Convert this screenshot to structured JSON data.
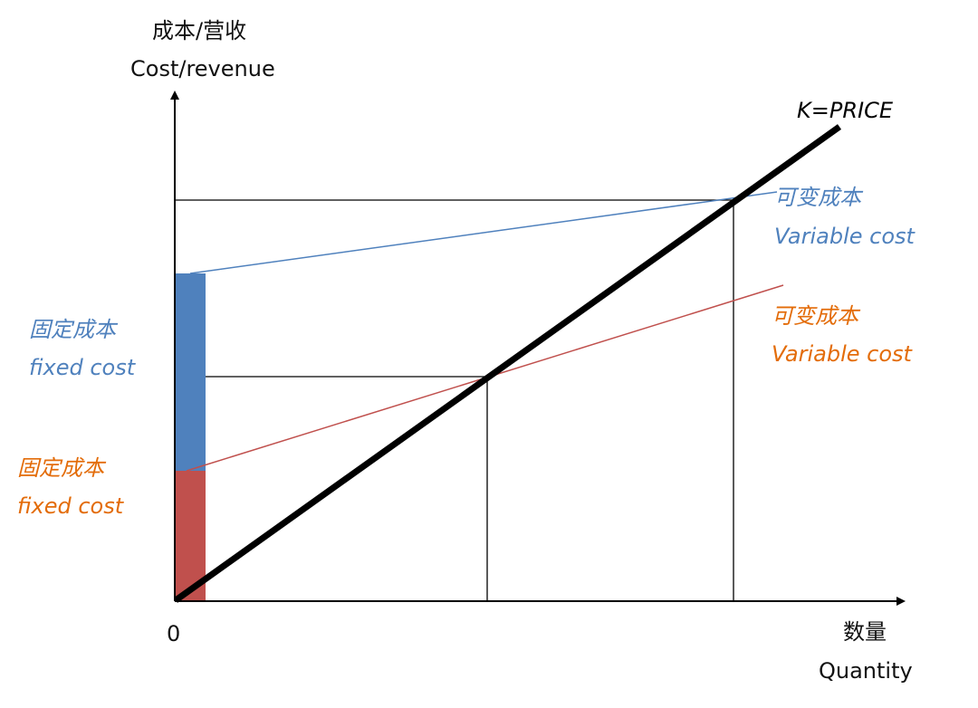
{
  "colors": {
    "axis": "#000000",
    "price_line": "#000000",
    "blue": "#4F81BD",
    "red": "#C0504D",
    "orange": "#E36C09"
  },
  "y_axis": {
    "title_zh": "成本/营收",
    "title_en": "Cost/revenue"
  },
  "x_axis": {
    "title_zh": "数量",
    "title_en": "Quantity",
    "origin_label": "0"
  },
  "price_line": {
    "label": "K=PRICE"
  },
  "scenario_blue": {
    "fixed_cost_zh": "固定成本",
    "fixed_cost_en": "fixed cost",
    "variable_cost_zh": "可变成本",
    "variable_cost_en": "Variable cost"
  },
  "scenario_orange": {
    "fixed_cost_zh": "固定成本",
    "fixed_cost_en": "fixed cost",
    "variable_cost_zh": "可变成本",
    "variable_cost_en": "Variable cost"
  }
}
